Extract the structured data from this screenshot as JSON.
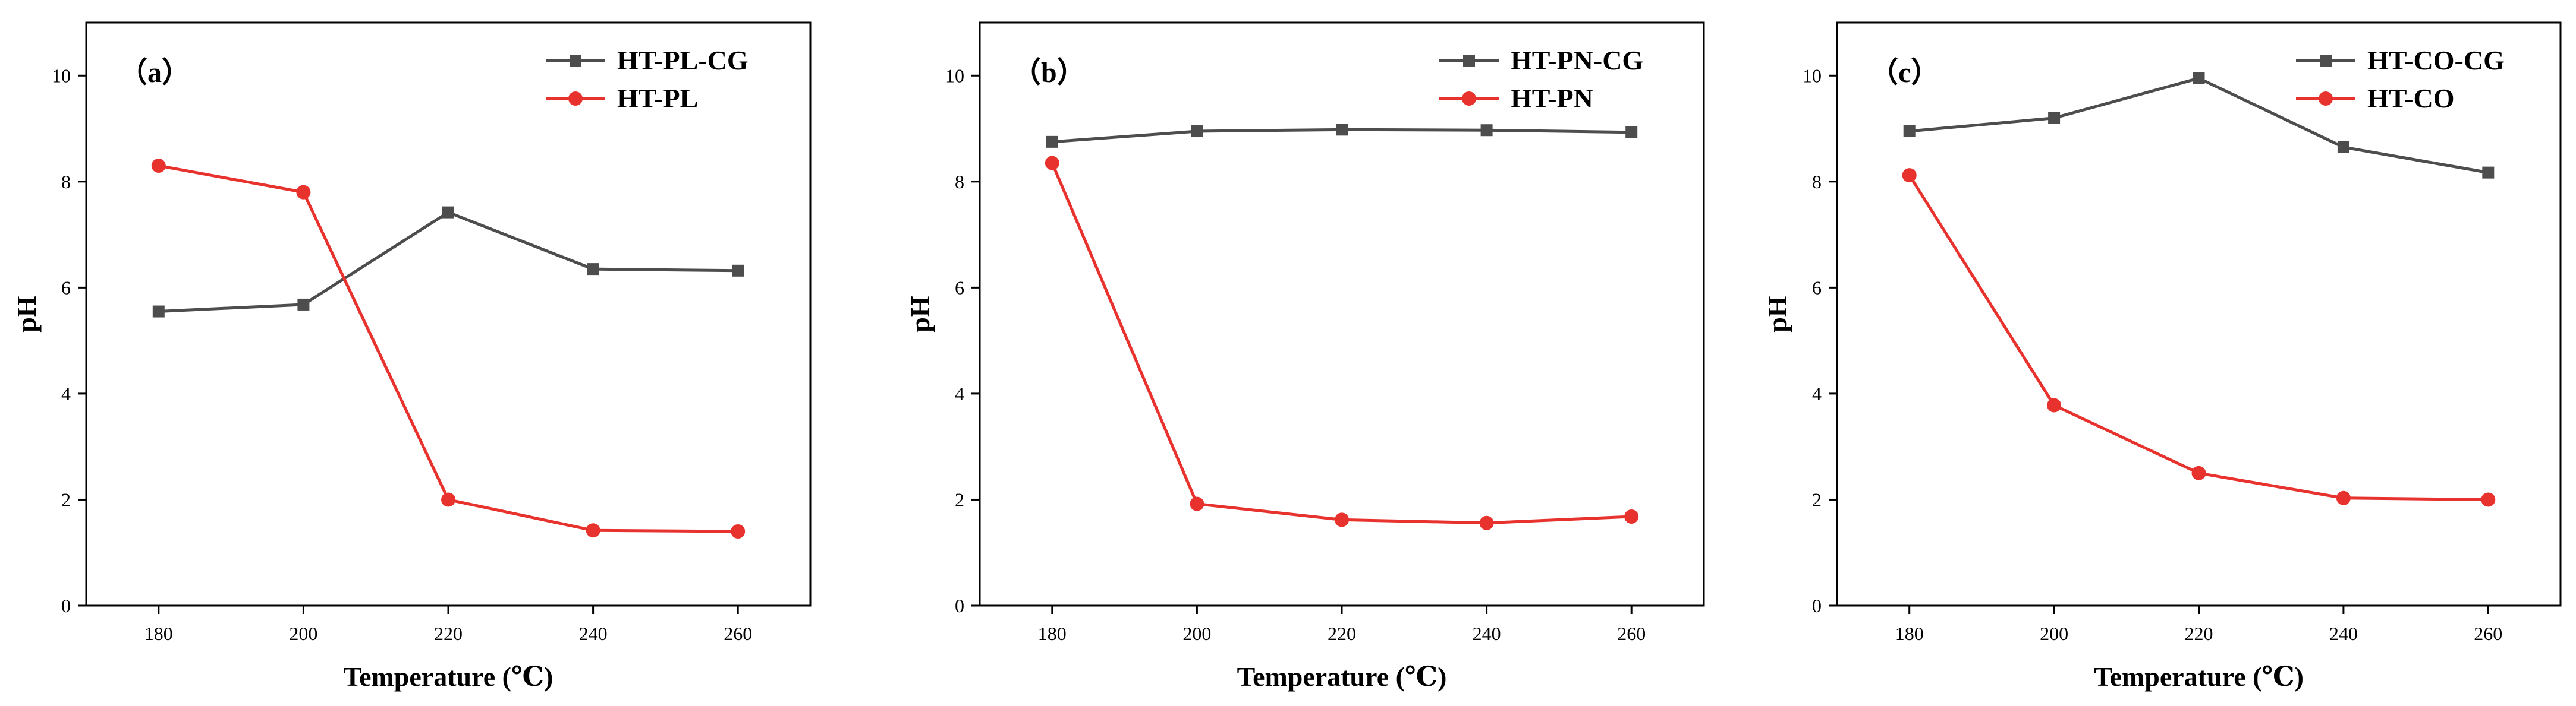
{
  "chart_data": [
    {
      "type": "line",
      "panel_label": "（a）",
      "categories": [
        180,
        200,
        220,
        240,
        260
      ],
      "xlabel": "Temperature (℃)",
      "ylabel": "pH",
      "ylim": [
        0,
        11
      ],
      "yticks": [
        0,
        2,
        4,
        6,
        8,
        10
      ],
      "legend_position": "top-right",
      "series": [
        {
          "name": "HT-PL-CG",
          "marker": "square",
          "color": "#4d4d4d",
          "values": [
            5.55,
            5.68,
            7.42,
            6.35,
            6.32
          ]
        },
        {
          "name": "HT-PL",
          "marker": "circle",
          "color": "#e8322e",
          "values": [
            8.3,
            7.8,
            2.0,
            1.42,
            1.4
          ]
        }
      ]
    },
    {
      "type": "line",
      "panel_label": "（b）",
      "categories": [
        180,
        200,
        220,
        240,
        260
      ],
      "xlabel": "Temperature (℃)",
      "ylabel": "pH",
      "ylim": [
        0,
        11
      ],
      "yticks": [
        0,
        2,
        4,
        6,
        8,
        10
      ],
      "legend_position": "top-right",
      "series": [
        {
          "name": "HT-PN-CG",
          "marker": "square",
          "color": "#4d4d4d",
          "values": [
            8.75,
            8.95,
            8.98,
            8.97,
            8.93
          ]
        },
        {
          "name": "HT-PN",
          "marker": "circle",
          "color": "#e8322e",
          "values": [
            8.35,
            1.92,
            1.62,
            1.56,
            1.68
          ]
        }
      ]
    },
    {
      "type": "line",
      "panel_label": "（c）",
      "categories": [
        180,
        200,
        220,
        240,
        260
      ],
      "xlabel": "Temperature (℃)",
      "ylabel": "pH",
      "ylim": [
        0,
        11
      ],
      "yticks": [
        0,
        2,
        4,
        6,
        8,
        10
      ],
      "legend_position": "top-right",
      "series": [
        {
          "name": "HT-CO-CG",
          "marker": "square",
          "color": "#4d4d4d",
          "values": [
            8.95,
            9.2,
            9.95,
            8.65,
            8.17
          ]
        },
        {
          "name": "HT-CO",
          "marker": "circle",
          "color": "#e8322e",
          "values": [
            8.12,
            3.78,
            2.5,
            2.03,
            2.0
          ]
        }
      ]
    }
  ]
}
